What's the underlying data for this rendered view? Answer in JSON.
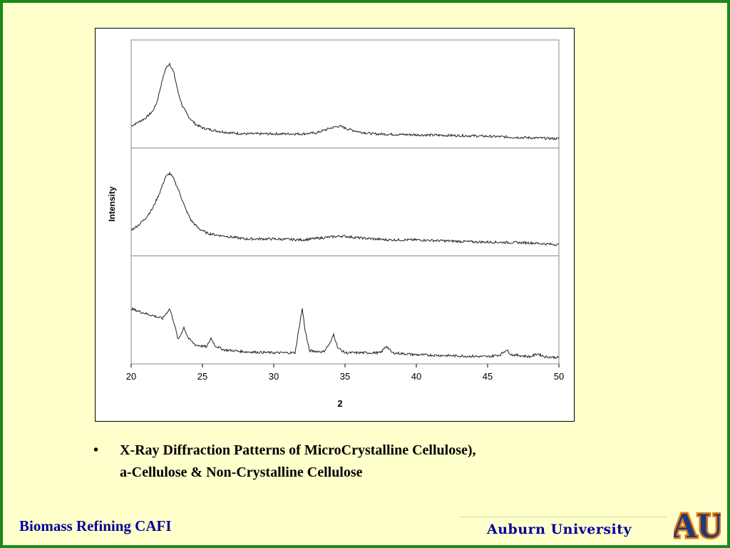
{
  "slide": {
    "caption_bullet": "•",
    "caption_line1": "X-Ray Diffraction Patterns of MicroCrystalline Cellulose),",
    "caption_line2": "a-Cellulose & Non-Crystalline Cellulose",
    "footer_left": "Biomass Refining CAFI",
    "footer_right": "Auburn University",
    "logo_text": "AU",
    "colors": {
      "background": "#ffffcc",
      "frame": "#1a8a1a",
      "footer_text": "#000099",
      "logo_blue": "#1f3a7a",
      "logo_orange": "#e07a10"
    },
    "logo_icon": "auburn-au-logo-icon"
  },
  "chart_data": {
    "type": "line",
    "xlabel": "2",
    "ylabel": "Intensity",
    "xlim": [
      20,
      50
    ],
    "x_ticks": [
      20,
      25,
      30,
      35,
      40,
      45,
      50
    ],
    "y_ticks_visible": false,
    "stacked_panels": 3,
    "series": [
      {
        "panel": 1,
        "points": [
          [
            20,
            0.18
          ],
          [
            20.5,
            0.22
          ],
          [
            21,
            0.26
          ],
          [
            21.5,
            0.33
          ],
          [
            21.8,
            0.42
          ],
          [
            22.1,
            0.6
          ],
          [
            22.4,
            0.76
          ],
          [
            22.7,
            0.82
          ],
          [
            23.0,
            0.72
          ],
          [
            23.3,
            0.52
          ],
          [
            23.6,
            0.38
          ],
          [
            24,
            0.28
          ],
          [
            24.5,
            0.2
          ],
          [
            25,
            0.16
          ],
          [
            26,
            0.13
          ],
          [
            27,
            0.11
          ],
          [
            28,
            0.1
          ],
          [
            30,
            0.1
          ],
          [
            32,
            0.1
          ],
          [
            33,
            0.11
          ],
          [
            34,
            0.16
          ],
          [
            34.6,
            0.18
          ],
          [
            35.2,
            0.15
          ],
          [
            36,
            0.12
          ],
          [
            37,
            0.1
          ],
          [
            40,
            0.09
          ],
          [
            44,
            0.08
          ],
          [
            48,
            0.06
          ],
          [
            50,
            0.05
          ]
        ]
      },
      {
        "panel": 2,
        "points": [
          [
            20,
            0.22
          ],
          [
            20.5,
            0.27
          ],
          [
            21,
            0.34
          ],
          [
            21.5,
            0.44
          ],
          [
            22.0,
            0.6
          ],
          [
            22.4,
            0.76
          ],
          [
            22.7,
            0.8
          ],
          [
            23.0,
            0.74
          ],
          [
            23.4,
            0.6
          ],
          [
            23.8,
            0.44
          ],
          [
            24.2,
            0.32
          ],
          [
            24.7,
            0.24
          ],
          [
            25.3,
            0.19
          ],
          [
            26,
            0.17
          ],
          [
            27,
            0.15
          ],
          [
            28,
            0.13
          ],
          [
            30,
            0.13
          ],
          [
            32,
            0.12
          ],
          [
            34,
            0.15
          ],
          [
            34.8,
            0.16
          ],
          [
            36,
            0.14
          ],
          [
            38,
            0.12
          ],
          [
            40,
            0.12
          ],
          [
            44,
            0.1
          ],
          [
            48,
            0.09
          ],
          [
            50,
            0.07
          ]
        ]
      },
      {
        "panel": 3,
        "points": [
          [
            20,
            0.52
          ],
          [
            20.8,
            0.48
          ],
          [
            21.5,
            0.45
          ],
          [
            22.2,
            0.42
          ],
          [
            22.7,
            0.52
          ],
          [
            23.0,
            0.38
          ],
          [
            23.3,
            0.2
          ],
          [
            23.7,
            0.33
          ],
          [
            24.0,
            0.22
          ],
          [
            24.5,
            0.15
          ],
          [
            25.3,
            0.13
          ],
          [
            25.6,
            0.22
          ],
          [
            25.9,
            0.14
          ],
          [
            26.5,
            0.1
          ],
          [
            28,
            0.08
          ],
          [
            30,
            0.07
          ],
          [
            31.5,
            0.07
          ],
          [
            31.8,
            0.35
          ],
          [
            32.0,
            0.52
          ],
          [
            32.2,
            0.3
          ],
          [
            32.5,
            0.09
          ],
          [
            33.5,
            0.08
          ],
          [
            34.0,
            0.18
          ],
          [
            34.2,
            0.26
          ],
          [
            34.5,
            0.12
          ],
          [
            35,
            0.07
          ],
          [
            37.5,
            0.07
          ],
          [
            37.9,
            0.14
          ],
          [
            38.3,
            0.07
          ],
          [
            40,
            0.05
          ],
          [
            45,
            0.03
          ],
          [
            45.9,
            0.05
          ],
          [
            46.3,
            0.1
          ],
          [
            46.7,
            0.05
          ],
          [
            48,
            0.03
          ],
          [
            48.5,
            0.06
          ],
          [
            49,
            0.03
          ],
          [
            50,
            0.02
          ]
        ]
      }
    ]
  }
}
